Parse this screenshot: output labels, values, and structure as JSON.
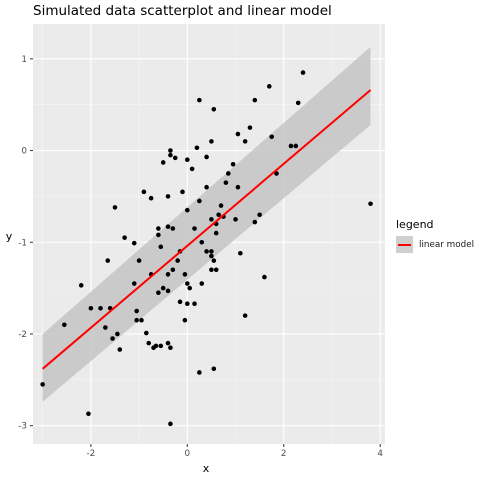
{
  "chart_data": {
    "type": "scatter",
    "title": "Simulated data scatterplot and linear model",
    "xlabel": "x",
    "ylabel": "y",
    "xlim": [
      -3.2,
      4.1
    ],
    "ylim": [
      -3.2,
      1.38
    ],
    "x_ticks": [
      -2,
      0,
      2,
      4
    ],
    "y_ticks": [
      -3,
      -2,
      -1,
      0,
      1
    ],
    "x_tick_labels": [
      "-2",
      "0",
      "2",
      "4"
    ],
    "y_tick_labels": [
      "-3",
      "-2",
      "-1",
      "0",
      "1"
    ],
    "grid": true,
    "legend": {
      "title": "legend",
      "position": "right",
      "entries": [
        "linear model"
      ]
    },
    "points": [
      [
        -3.0,
        -2.55
      ],
      [
        -2.05,
        -2.87
      ],
      [
        -2.55,
        -1.9
      ],
      [
        -2.2,
        -1.47
      ],
      [
        -2.0,
        -1.72
      ],
      [
        -1.8,
        -1.72
      ],
      [
        -1.6,
        -1.72
      ],
      [
        -1.65,
        -1.2
      ],
      [
        -1.7,
        -1.93
      ],
      [
        -1.55,
        -2.05
      ],
      [
        -1.45,
        -2.0
      ],
      [
        -1.4,
        -2.17
      ],
      [
        -1.5,
        -0.62
      ],
      [
        -1.3,
        -0.95
      ],
      [
        -1.1,
        -1.01
      ],
      [
        -1.0,
        -1.2
      ],
      [
        -1.1,
        -1.45
      ],
      [
        -1.05,
        -1.75
      ],
      [
        -1.05,
        -1.85
      ],
      [
        -0.95,
        -1.85
      ],
      [
        -0.85,
        -1.99
      ],
      [
        -0.8,
        -2.1
      ],
      [
        -0.7,
        -2.15
      ],
      [
        -0.65,
        -2.13
      ],
      [
        -0.55,
        -2.13
      ],
      [
        -0.4,
        -2.1
      ],
      [
        -0.35,
        -2.15
      ],
      [
        -0.9,
        -0.45
      ],
      [
        -0.75,
        -0.52
      ],
      [
        -0.6,
        -0.85
      ],
      [
        -0.6,
        -0.92
      ],
      [
        -0.55,
        -1.05
      ],
      [
        -0.75,
        -1.35
      ],
      [
        -0.6,
        -1.55
      ],
      [
        -0.5,
        -1.5
      ],
      [
        -0.4,
        -1.53
      ],
      [
        -0.4,
        -1.35
      ],
      [
        -0.3,
        -1.3
      ],
      [
        -0.2,
        -1.2
      ],
      [
        -0.15,
        -1.1
      ],
      [
        -0.05,
        -1.35
      ],
      [
        0.0,
        -1.45
      ],
      [
        0.05,
        -1.5
      ],
      [
        -0.15,
        -1.65
      ],
      [
        0.0,
        -1.67
      ],
      [
        0.15,
        -1.67
      ],
      [
        -0.05,
        -1.85
      ],
      [
        -0.4,
        -0.83
      ],
      [
        -0.3,
        -0.85
      ],
      [
        -0.4,
        -0.5
      ],
      [
        -0.5,
        -0.13
      ],
      [
        -0.35,
        0.0
      ],
      [
        -0.35,
        -0.05
      ],
      [
        -0.25,
        -0.08
      ],
      [
        -0.1,
        -0.45
      ],
      [
        0.0,
        -0.65
      ],
      [
        0.0,
        -0.1
      ],
      [
        0.1,
        -0.2
      ],
      [
        0.2,
        0.03
      ],
      [
        0.4,
        -0.07
      ],
      [
        0.4,
        -0.4
      ],
      [
        0.25,
        -0.55
      ],
      [
        0.15,
        -0.85
      ],
      [
        0.3,
        -1.0
      ],
      [
        0.4,
        -1.1
      ],
      [
        0.3,
        -1.45
      ],
      [
        0.5,
        -1.1
      ],
      [
        0.5,
        -1.15
      ],
      [
        0.55,
        -1.2
      ],
      [
        0.6,
        -1.3
      ],
      [
        0.5,
        -1.3
      ],
      [
        0.6,
        -0.9
      ],
      [
        0.6,
        -0.8
      ],
      [
        0.65,
        -0.7
      ],
      [
        0.75,
        -0.72
      ],
      [
        0.7,
        -0.6
      ],
      [
        0.5,
        -0.75
      ],
      [
        0.55,
        0.45
      ],
      [
        0.5,
        0.1
      ],
      [
        0.25,
        0.55
      ],
      [
        0.8,
        -0.35
      ],
      [
        0.85,
        -0.25
      ],
      [
        0.95,
        -0.15
      ],
      [
        1.05,
        -0.4
      ],
      [
        1.0,
        -0.75
      ],
      [
        1.1,
        -1.12
      ],
      [
        1.05,
        0.18
      ],
      [
        1.2,
        0.1
      ],
      [
        1.3,
        0.25
      ],
      [
        1.4,
        0.55
      ],
      [
        1.5,
        -0.7
      ],
      [
        1.4,
        -0.78
      ],
      [
        1.6,
        -1.38
      ],
      [
        1.2,
        -1.8
      ],
      [
        1.7,
        0.7
      ],
      [
        1.75,
        0.15
      ],
      [
        1.85,
        -0.25
      ],
      [
        2.15,
        0.05
      ],
      [
        2.25,
        0.05
      ],
      [
        2.3,
        0.52
      ],
      [
        2.4,
        0.85
      ],
      [
        3.8,
        -0.58
      ],
      [
        0.25,
        -2.42
      ],
      [
        0.55,
        -2.38
      ],
      [
        -0.35,
        -2.98
      ]
    ],
    "series": [
      {
        "name": "linear model",
        "type": "line",
        "x": [
          -3.0,
          3.8
        ],
        "y": [
          -2.38,
          0.66
        ],
        "band_lower": [
          -2.74,
          0.28
        ],
        "band_upper": [
          -2.0,
          1.13
        ]
      }
    ],
    "colors": {
      "panel": "#ebebeb",
      "grid_major": "#ffffff",
      "grid_minor": "#f5f5f5",
      "points": "#000000",
      "line": "#ff0000",
      "band": "#c4c4c4",
      "legend_key": "#cfcfcf",
      "tick_text": "#4d4d4d"
    }
  }
}
